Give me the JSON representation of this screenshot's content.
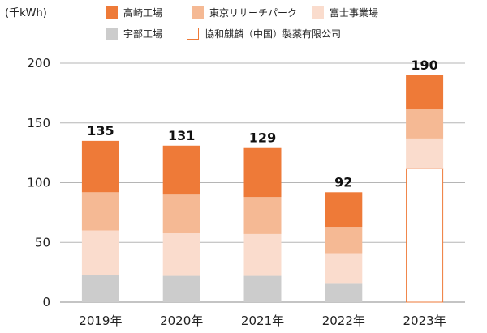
{
  "chart_data": {
    "type": "bar",
    "stacked": true,
    "unit_label": "(千kWh)",
    "categories": [
      "2019年",
      "2020年",
      "2021年",
      "2022年",
      "2023年"
    ],
    "series": [
      {
        "name": "宇部工場",
        "color": "#cccccc",
        "values": [
          23,
          22,
          22,
          16,
          0
        ]
      },
      {
        "name": "富士事業場",
        "color": "#fadccd",
        "values": [
          37,
          36,
          35,
          25,
          25
        ]
      },
      {
        "name": "東京リサーチパーク",
        "color": "#f5b994",
        "values": [
          32,
          32,
          31,
          22,
          25
        ]
      },
      {
        "name": "高崎工場",
        "color": "#ee7a38",
        "values": [
          43,
          41,
          41,
          29,
          28
        ]
      },
      {
        "name": "協和麒麟（中国）製薬有限公司",
        "color": "#ffffff",
        "stroke": "#ee7a38",
        "values": [
          0,
          0,
          0,
          0,
          112
        ]
      }
    ],
    "stack_order": [
      "宇部工場",
      "協和麒麟（中国）製薬有限公司",
      "富士事業場",
      "東京リサーチパーク",
      "高崎工場"
    ],
    "totals": [
      135,
      131,
      129,
      92,
      190
    ],
    "ylim": [
      0,
      200
    ],
    "yticks": [
      0,
      50,
      100,
      150,
      200
    ],
    "grid": true,
    "legend_order": [
      "高崎工場",
      "東京リサーチパーク",
      "富士事業場",
      "宇部工場",
      "協和麒麟（中国）製薬有限公司"
    ],
    "legend_position": "top"
  }
}
